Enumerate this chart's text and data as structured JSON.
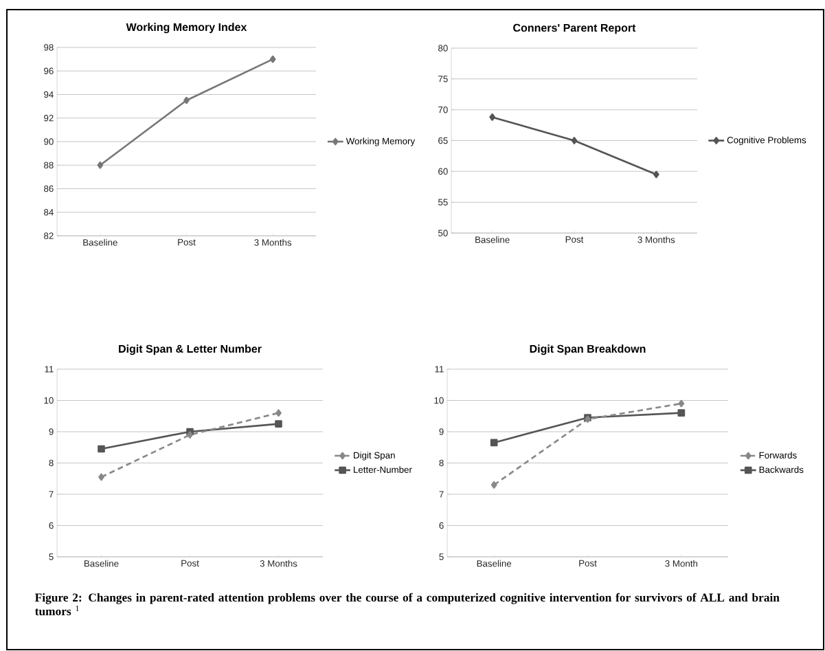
{
  "chart_data": [
    {
      "type": "line",
      "title": "Working Memory Index",
      "categories": [
        "Baseline",
        "Post",
        "3 Months"
      ],
      "ylim": [
        82,
        98
      ],
      "yticks": [
        82,
        84,
        86,
        88,
        90,
        92,
        94,
        96,
        98
      ],
      "grid": "y",
      "legend": "right",
      "marker": "diamond",
      "line_style": "solid",
      "series": [
        {
          "name": "Working Memory",
          "color": "#777777",
          "values": [
            88,
            93.5,
            97
          ]
        }
      ]
    },
    {
      "type": "line",
      "title": "Conners' Parent Report",
      "categories": [
        "Baseline",
        "Post",
        "3 Months"
      ],
      "ylim": [
        50,
        80
      ],
      "yticks": [
        50,
        55,
        60,
        65,
        70,
        75,
        80
      ],
      "grid": "y",
      "legend": "right",
      "marker": "diamond",
      "line_style": "solid",
      "series": [
        {
          "name": "Cognitive Problems",
          "color": "#555555",
          "values": [
            68.8,
            65,
            59.5
          ]
        }
      ]
    },
    {
      "type": "line",
      "title": "Digit Span & Letter Number",
      "categories": [
        "Baseline",
        "Post",
        "3 Months"
      ],
      "ylim": [
        5,
        11
      ],
      "yticks": [
        5,
        6,
        7,
        8,
        9,
        10,
        11
      ],
      "grid": "y",
      "legend": "right",
      "series": [
        {
          "name": "Digit Span",
          "color": "#888888",
          "marker": "diamond",
          "line_style": "dashed",
          "values": [
            7.55,
            8.9,
            9.6
          ]
        },
        {
          "name": "Letter-Number",
          "color": "#555555",
          "marker": "square",
          "line_style": "solid",
          "values": [
            8.45,
            9.0,
            9.25
          ]
        }
      ]
    },
    {
      "type": "line",
      "title": "Digit Span Breakdown",
      "categories": [
        "Baseline",
        "Post",
        "3 Month"
      ],
      "ylim": [
        5,
        11
      ],
      "yticks": [
        5,
        6,
        7,
        8,
        9,
        10,
        11
      ],
      "grid": "y",
      "legend": "right",
      "series": [
        {
          "name": "Forwards",
          "color": "#888888",
          "marker": "diamond",
          "line_style": "dashed",
          "values": [
            7.3,
            9.4,
            9.9
          ]
        },
        {
          "name": "Backwards",
          "color": "#555555",
          "marker": "square",
          "line_style": "solid",
          "values": [
            8.65,
            9.45,
            9.6
          ]
        }
      ],
      "annotations": [
        "**Figure 2: Changes in parent-rated attention problems over the course of a computerized cognitive intervention for survivors of ALL and brain tumors** $^{1}$"
      ]
    }
  ]
}
